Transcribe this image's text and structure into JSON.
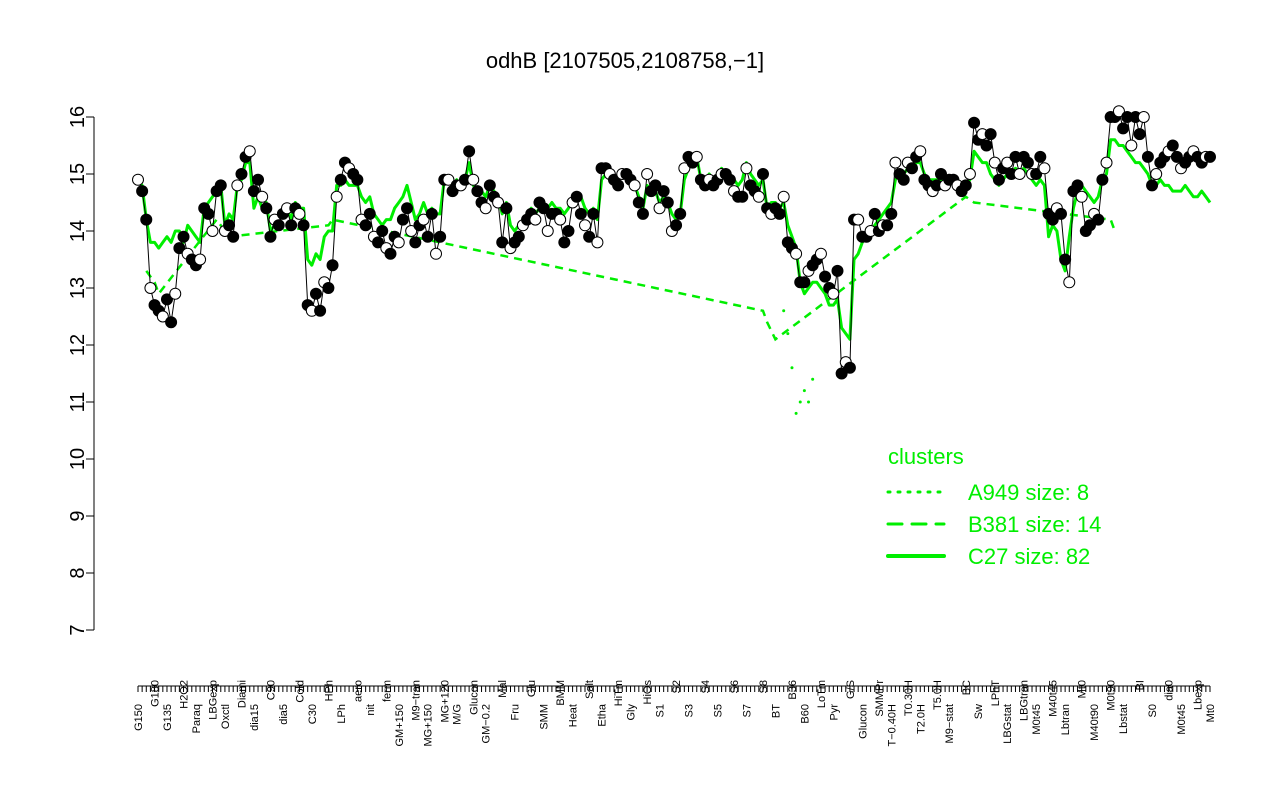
{
  "chart_data": {
    "type": "line",
    "title": "odhB [2107505,2108758,−1]",
    "xlabel": "",
    "ylabel": "",
    "ylim": [
      7,
      16
    ],
    "y_ticks": [
      7,
      8,
      9,
      10,
      11,
      12,
      13,
      14,
      15,
      16
    ],
    "x_tick_labels": [
      "G150",
      "G180",
      "G135",
      "H2O2",
      "Paraq",
      "LBGexp",
      "Oxctl",
      "Diami",
      "dia15",
      "C90",
      "dia5",
      "Cold",
      "C30",
      "HPh",
      "LPh",
      "aero",
      "nit",
      "ferm",
      "GM+150",
      "M9−tran",
      "MG+150",
      "MG+120",
      "M/G",
      "Glucon",
      "GM−0.2",
      "Mal",
      "Fru",
      "Glu",
      "SMM",
      "BMM",
      "Heat",
      "Salt",
      "Etha",
      "HiTm",
      "Gly",
      "HiOs",
      "S1",
      "S2",
      "S3",
      "S4",
      "S5",
      "S6",
      "S7",
      "S8",
      "BT",
      "B36",
      "B60",
      "LoTm",
      "Pyr",
      "G/S",
      "Glucon",
      "SMMPr",
      "T−0.40H",
      "T0.30H",
      "T2.0H",
      "T5.0H",
      "M9−stat",
      "BC",
      "Sw",
      "LPhT",
      "LBGstat",
      "LBGtran",
      "M0t45",
      "M40t45",
      "Lbtran",
      "Mt0",
      "M40t90",
      "M0t90",
      "Lbstat",
      "BI",
      "S0",
      "dia0",
      "M0t45",
      "Lbexp",
      "Mt0"
    ],
    "series": [
      {
        "name": "",
        "color": "#000000",
        "values": [
          14.9,
          14.7,
          14.2,
          13.0,
          12.7,
          12.6,
          12.5,
          12.8,
          12.4,
          12.9,
          13.7,
          13.9,
          13.6,
          13.5,
          13.4,
          13.5,
          14.4,
          14.3,
          14.0,
          14.7,
          14.8,
          14.0,
          14.1,
          13.9,
          14.8,
          15.0,
          15.3,
          15.4,
          14.7,
          14.9,
          14.6,
          14.4,
          13.9,
          14.2,
          14.1,
          14.3,
          14.4,
          14.1,
          14.4,
          14.3,
          14.1,
          12.7,
          12.6,
          12.9,
          12.6,
          13.1,
          13.0,
          13.4,
          14.6,
          14.9,
          15.2,
          15.1,
          15.0,
          14.9,
          14.2,
          14.1,
          14.3,
          13.9,
          13.8,
          14.0,
          13.7,
          13.6,
          13.9,
          13.8,
          14.2,
          14.4,
          14.0,
          13.8,
          14.1,
          14.2,
          13.9,
          14.3,
          13.6,
          13.9,
          14.9,
          14.9,
          14.7,
          14.8,
          14.8,
          14.9,
          15.4,
          14.9,
          14.7,
          14.5,
          14.4,
          14.8,
          14.6,
          14.5,
          13.8,
          14.4,
          13.7,
          13.8,
          13.9,
          14.1,
          14.2,
          14.3,
          14.2,
          14.5,
          14.4,
          14.0,
          14.3,
          14.3,
          14.2,
          13.8,
          14.0,
          14.5,
          14.6,
          14.3,
          14.1,
          13.9,
          14.3,
          13.8,
          15.1,
          15.1,
          15.0,
          14.9,
          14.8,
          15.0,
          15.0,
          14.9,
          14.8,
          14.5,
          14.3,
          15.0,
          14.7,
          14.8,
          14.4,
          14.7,
          14.5,
          14.0,
          14.1,
          14.3,
          15.1,
          15.3,
          15.2,
          15.3,
          14.9,
          14.8,
          14.9,
          14.8,
          14.9,
          15.0,
          15.0,
          14.9,
          14.7,
          14.6,
          14.6,
          15.1,
          14.8,
          14.7,
          14.6,
          15.0,
          14.4,
          14.3,
          14.4,
          14.3,
          14.6,
          13.8,
          13.7,
          13.6,
          13.1,
          13.1,
          13.3,
          13.4,
          13.5,
          13.6,
          13.2,
          13.0,
          12.9,
          13.3,
          11.5,
          11.7,
          11.6,
          14.2,
          14.2,
          13.9,
          13.9,
          14.0,
          14.3,
          14.0,
          14.1,
          14.1,
          14.3,
          15.2,
          15.0,
          14.9,
          15.2,
          15.1,
          15.3,
          15.4,
          14.9,
          14.8,
          14.7,
          14.8,
          15.0,
          14.8,
          14.9,
          14.9,
          14.8,
          14.7,
          14.8,
          15.0,
          15.9,
          15.6,
          15.7,
          15.5,
          15.7,
          15.2,
          14.9,
          15.1,
          15.2,
          15.0,
          15.3,
          15.0,
          15.3,
          15.2,
          15.0,
          15.0,
          15.3,
          15.1,
          14.3,
          14.2,
          14.4,
          14.3,
          13.5,
          13.1,
          14.7,
          14.8,
          14.6,
          14.0,
          14.1,
          14.3,
          14.2,
          14.9,
          15.2,
          16.0,
          16.0,
          16.1,
          15.8,
          16.0,
          15.5,
          16.0,
          15.7,
          16.0,
          15.3,
          14.8,
          15.0,
          15.2,
          15.3,
          15.4,
          15.5,
          15.3,
          15.1,
          15.2,
          15.3,
          15.4,
          15.3,
          15.2,
          15.3,
          15.3
        ]
      },
      {
        "name": "C27 size: 82",
        "color": "#00ee00",
        "values": [
          14.9,
          14.8,
          14.2,
          13.8,
          13.8,
          13.7,
          13.8,
          13.9,
          13.8,
          14.0,
          14.0,
          13.8,
          14.1,
          14.0,
          13.9,
          13.8,
          14.4,
          14.5,
          14.6,
          14.7,
          14.8,
          14.1,
          14.3,
          14.2,
          14.8,
          14.9,
          15.2,
          15.2,
          14.4,
          14.6,
          14.4,
          14.5,
          14.0,
          14.1,
          14.2,
          14.3,
          14.4,
          14.2,
          14.5,
          14.4,
          14.4,
          13.5,
          13.4,
          13.6,
          13.5,
          13.9,
          14.0,
          14.0,
          14.8,
          14.8,
          14.9,
          14.8,
          14.8,
          14.8,
          14.6,
          14.5,
          14.6,
          14.3,
          14.2,
          14.1,
          14.2,
          14.2,
          14.4,
          14.5,
          14.6,
          14.8,
          14.5,
          14.2,
          14.3,
          14.5,
          14.3,
          14.4,
          14.3,
          14.3,
          14.9,
          14.9,
          14.8,
          14.9,
          14.8,
          14.9,
          15.2,
          14.8,
          14.7,
          14.7,
          14.6,
          14.8,
          14.7,
          14.6,
          14.3,
          14.5,
          14.1,
          14.0,
          14.1,
          14.2,
          14.3,
          14.4,
          14.3,
          14.4,
          14.5,
          14.4,
          14.5,
          14.4,
          14.4,
          14.3,
          14.4,
          14.6,
          14.5,
          14.6,
          14.4,
          14.3,
          14.4,
          14.2,
          14.9,
          15.0,
          14.9,
          14.9,
          14.9,
          15.0,
          14.9,
          14.9,
          14.8,
          14.6,
          14.4,
          14.8,
          14.7,
          14.7,
          14.5,
          14.6,
          14.5,
          14.3,
          14.2,
          14.3,
          14.9,
          15.1,
          15.2,
          15.3,
          14.9,
          14.9,
          15.0,
          14.9,
          15.0,
          15.1,
          15.0,
          15.0,
          14.9,
          14.8,
          14.9,
          15.2,
          15.0,
          14.9,
          14.8,
          14.9,
          14.4,
          14.5,
          14.5,
          14.4,
          14.5,
          14.1,
          13.9,
          13.7,
          13.1,
          12.9,
          13.0,
          13.1,
          13.1,
          13.0,
          12.9,
          12.7,
          12.7,
          12.8,
          12.3,
          12.2,
          12.1,
          13.5,
          13.6,
          13.8,
          13.9,
          14.0,
          14.1,
          14.2,
          14.3,
          14.4,
          14.5,
          14.9,
          15.0,
          15.0,
          15.1,
          15.1,
          15.2,
          15.2,
          15.0,
          14.9,
          14.9,
          14.9,
          14.9,
          14.8,
          14.8,
          14.9,
          14.9,
          14.8,
          14.8,
          14.9,
          15.4,
          15.3,
          15.2,
          15.2,
          15.0,
          14.9,
          14.8,
          14.9,
          15.0,
          15.0,
          15.1,
          15.0,
          15.1,
          15.0,
          14.9,
          14.8,
          14.9,
          14.8,
          13.9,
          14.1,
          14.0,
          13.5,
          13.3,
          13.9,
          14.4,
          14.7,
          14.8,
          14.7,
          14.6,
          14.5,
          14.6,
          14.9,
          15.0,
          15.6,
          15.6,
          15.5,
          15.5,
          15.4,
          15.3,
          15.2,
          15.2,
          15.1,
          15.0,
          14.8,
          14.8,
          14.9,
          14.8,
          14.8,
          14.7,
          14.7,
          14.7,
          14.8,
          14.7,
          14.6,
          14.6,
          14.7,
          14.6,
          14.5
        ]
      },
      {
        "name": "B381 size: 14",
        "color": "#00ee00",
        "dash": "dashed",
        "values": [
          [
            2,
            13.3
          ],
          [
            4,
            13.1
          ],
          [
            5,
            12.9
          ],
          [
            19,
            14.2
          ],
          [
            22,
            13.9
          ],
          [
            46,
            14.1
          ],
          [
            47,
            14.2
          ],
          [
            151,
            12.6
          ],
          [
            152,
            12.4
          ],
          [
            154,
            12.1
          ],
          [
            200,
            14.6
          ],
          [
            202,
            14.5
          ],
          [
            235,
            14.2
          ],
          [
            236,
            14.0
          ]
        ]
      },
      {
        "name": "A949 size: 8",
        "color": "#00ee00",
        "dash": "dotted",
        "values": [
          [
            156,
            12.6
          ],
          [
            157,
            12.2
          ],
          [
            158,
            11.6
          ],
          [
            159,
            10.8
          ],
          [
            160,
            11.0
          ],
          [
            161,
            11.2
          ],
          [
            162,
            11.0
          ],
          [
            163,
            11.4
          ]
        ]
      }
    ],
    "legend": {
      "title": "clusters",
      "entries": [
        "A949 size: 8",
        "B381 size: 14",
        "C27 size: 82"
      ],
      "placement": "bottom-right"
    },
    "grid": false
  }
}
